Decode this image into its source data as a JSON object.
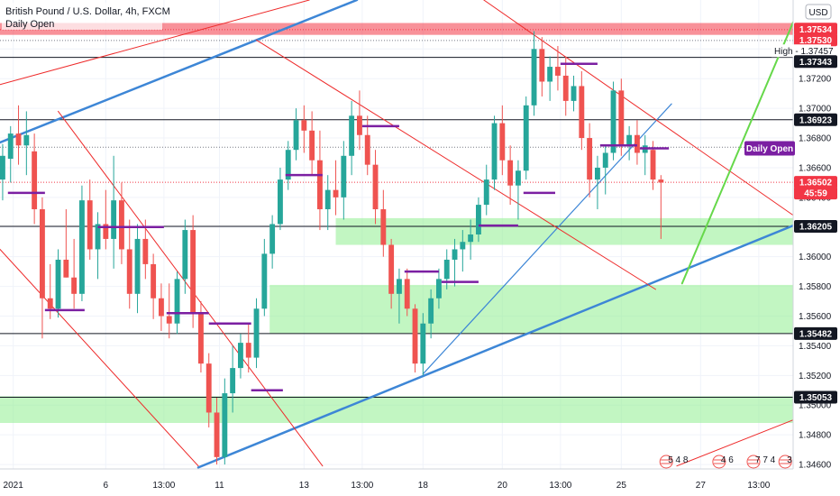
{
  "header": {
    "title": "British Pound / U.S. Dollar, 4h, FXCM",
    "indicator": "Daily Open",
    "currency_button": "USD"
  },
  "colors": {
    "up": "#26a69a",
    "down": "#ef5350",
    "grid": "#f0f3fa",
    "zone": "#90ee90",
    "channel_red": "#ee2a2a",
    "trend_blue": "#3d86d6",
    "arrow_green": "#66d84a",
    "daily_open": "#7b1fa2",
    "resistance_band": "#f23645"
  },
  "chart_data": {
    "type": "candlestick",
    "title": "British Pound / U.S. Dollar, 4h, FXCM",
    "ylim": [
      1.3457,
      1.3773
    ],
    "x_range": [
      0,
      300
    ],
    "y_ticks": [
      "1.34600",
      "1.34800",
      "1.35000",
      "1.35200",
      "1.35400",
      "1.35600",
      "1.35800",
      "1.36000",
      "1.36200",
      "1.36400",
      "1.36600",
      "1.36800",
      "1.37000",
      "1.37200",
      "1.37400"
    ],
    "x_ticks": [
      {
        "label": "2021",
        "x": 5
      },
      {
        "label": "6",
        "x": 40
      },
      {
        "label": "13:00",
        "x": 62
      },
      {
        "label": "11",
        "x": 83
      },
      {
        "label": "13",
        "x": 115
      },
      {
        "label": "13:00",
        "x": 137
      },
      {
        "label": "18",
        "x": 160
      },
      {
        "label": "20",
        "x": 190
      },
      {
        "label": "13:00",
        "x": 212
      },
      {
        "label": "25",
        "x": 235
      },
      {
        "label": "27",
        "x": 265
      },
      {
        "label": "13:00",
        "x": 287
      }
    ],
    "horizontal_lines": [
      {
        "price": 1.37343,
        "color": "#131722"
      },
      {
        "price": 1.36923,
        "color": "#131722"
      },
      {
        "price": 1.36205,
        "color": "#131722"
      },
      {
        "price": 1.35482,
        "color": "#131722"
      },
      {
        "price": 1.35053,
        "color": "#131722"
      }
    ],
    "dotted_lines": [
      {
        "price": 1.3753,
        "color": "#f23645"
      },
      {
        "price": 1.37457,
        "color": "#787b86"
      },
      {
        "price": 1.36738,
        "color": "#787b86"
      },
      {
        "price": 1.36502,
        "color": "#f23645"
      }
    ],
    "resistance_band": {
      "y0": 1.37495,
      "y1": 1.37575
    },
    "zones": [
      {
        "x0": 127,
        "x1": 300,
        "y0": 1.3608,
        "y1": 1.3626
      },
      {
        "x0": 102,
        "x1": 300,
        "y0": 1.35485,
        "y1": 1.3581
      },
      {
        "x0": 0,
        "x1": 300,
        "y0": 1.3488,
        "y1": 1.3506
      }
    ],
    "price_labels": [
      {
        "text": "1.37534",
        "price": 1.37534,
        "bg": "#f23645",
        "fg": "#ffffff"
      },
      {
        "text": "1.37530",
        "price": 1.3753,
        "bg": "#f23645",
        "fg": "#ffffff"
      },
      {
        "text": "High - 1.37457",
        "price": 1.37457,
        "bg": "#ffffff",
        "fg": "#131722"
      },
      {
        "text": "1.37343",
        "price": 1.37343,
        "bg": "#131722",
        "fg": "#ffffff"
      },
      {
        "text": "1.36923",
        "price": 1.36923,
        "bg": "#131722",
        "fg": "#ffffff"
      },
      {
        "text": "Daily Open",
        "price": 1.3673,
        "bg": "#7b1fa2",
        "fg": "#ffffff"
      },
      {
        "text": "1.36502",
        "price": 1.36502,
        "bg": "#f23645",
        "fg": "#ffffff"
      },
      {
        "text": "45:59",
        "price": 1.36435,
        "bg": "#f23645",
        "fg": "#ffffff"
      },
      {
        "text": "1.36205",
        "price": 1.36205,
        "bg": "#131722",
        "fg": "#ffffff"
      },
      {
        "text": "1.35482",
        "price": 1.35482,
        "bg": "#131722",
        "fg": "#ffffff"
      },
      {
        "text": "1.35053",
        "price": 1.35053,
        "bg": "#131722",
        "fg": "#ffffff"
      }
    ],
    "trend_lines": [
      {
        "x1": 0,
        "y1": 1.3677,
        "x2": 135,
        "y2": 1.3773,
        "color": "#3d86d6",
        "width": 2.5
      },
      {
        "x1": 75,
        "y1": 1.3458,
        "x2": 300,
        "y2": 1.3621,
        "color": "#3d86d6",
        "width": 2.5
      },
      {
        "x1": 160,
        "y1": 1.3521,
        "x2": 254,
        "y2": 1.3703,
        "color": "#3d86d6",
        "width": 1.2
      },
      {
        "x1": 0,
        "y1": 1.3716,
        "x2": 117,
        "y2": 1.3773,
        "color": "#ee2a2a",
        "width": 1
      },
      {
        "x1": 0,
        "y1": 1.3605,
        "x2": 75,
        "y2": 1.3459,
        "color": "#ee2a2a",
        "width": 1
      },
      {
        "x1": 22,
        "y1": 1.3698,
        "x2": 122,
        "y2": 1.3459,
        "color": "#ee2a2a",
        "width": 1
      },
      {
        "x1": 97,
        "y1": 1.3746,
        "x2": 248,
        "y2": 1.3578,
        "color": "#ee2a2a",
        "width": 1
      },
      {
        "x1": 183,
        "y1": 1.3773,
        "x2": 300,
        "y2": 1.3628,
        "color": "#ee2a2a",
        "width": 1
      },
      {
        "x1": 256,
        "y1": 1.3459,
        "x2": 300,
        "y2": 1.349,
        "color": "#ee2a2a",
        "width": 1
      },
      {
        "x1": 258,
        "y1": 1.3582,
        "x2": 300,
        "y2": 1.3758,
        "color": "#66d84a",
        "width": 2
      }
    ],
    "candles": [
      {
        "x": 1,
        "o": 1.3652,
        "h": 1.3676,
        "l": 1.3638,
        "c": 1.3668
      },
      {
        "x": 4,
        "o": 1.3666,
        "h": 1.3688,
        "l": 1.365,
        "c": 1.3683
      },
      {
        "x": 7,
        "o": 1.3683,
        "h": 1.3702,
        "l": 1.3662,
        "c": 1.3675
      },
      {
        "x": 10,
        "o": 1.3675,
        "h": 1.3698,
        "l": 1.3655,
        "c": 1.3682
      },
      {
        "x": 13,
        "o": 1.3671,
        "h": 1.3683,
        "l": 1.3622,
        "c": 1.3632
      },
      {
        "x": 16,
        "o": 1.3632,
        "h": 1.364,
        "l": 1.3545,
        "c": 1.3572
      },
      {
        "x": 19,
        "o": 1.3572,
        "h": 1.3595,
        "l": 1.3558,
        "c": 1.3565
      },
      {
        "x": 22,
        "o": 1.3565,
        "h": 1.3605,
        "l": 1.3559,
        "c": 1.3598
      },
      {
        "x": 25,
        "o": 1.3598,
        "h": 1.3632,
        "l": 1.3586,
        "c": 1.3586
      },
      {
        "x": 28,
        "o": 1.3586,
        "h": 1.3612,
        "l": 1.3565,
        "c": 1.3575
      },
      {
        "x": 31,
        "o": 1.3575,
        "h": 1.3648,
        "l": 1.357,
        "c": 1.3638
      },
      {
        "x": 34,
        "o": 1.3638,
        "h": 1.3652,
        "l": 1.3598,
        "c": 1.3605
      },
      {
        "x": 37,
        "o": 1.3605,
        "h": 1.363,
        "l": 1.3585,
        "c": 1.3622
      },
      {
        "x": 40,
        "o": 1.3622,
        "h": 1.3645,
        "l": 1.3605,
        "c": 1.3612
      },
      {
        "x": 43,
        "o": 1.3612,
        "h": 1.3668,
        "l": 1.3592,
        "c": 1.3638
      },
      {
        "x": 46,
        "o": 1.3638,
        "h": 1.365,
        "l": 1.3595,
        "c": 1.3605
      },
      {
        "x": 49,
        "o": 1.3605,
        "h": 1.3625,
        "l": 1.3565,
        "c": 1.3575
      },
      {
        "x": 52,
        "o": 1.3575,
        "h": 1.3622,
        "l": 1.3562,
        "c": 1.3612
      },
      {
        "x": 55,
        "o": 1.3612,
        "h": 1.3625,
        "l": 1.3585,
        "c": 1.3595
      },
      {
        "x": 58,
        "o": 1.3595,
        "h": 1.3602,
        "l": 1.3558,
        "c": 1.3572
      },
      {
        "x": 61,
        "o": 1.3572,
        "h": 1.3582,
        "l": 1.355,
        "c": 1.356
      },
      {
        "x": 64,
        "o": 1.356,
        "h": 1.3582,
        "l": 1.3545,
        "c": 1.3555
      },
      {
        "x": 67,
        "o": 1.3555,
        "h": 1.359,
        "l": 1.3548,
        "c": 1.3585
      },
      {
        "x": 70,
        "o": 1.3585,
        "h": 1.3625,
        "l": 1.3575,
        "c": 1.3618
      },
      {
        "x": 73,
        "o": 1.3618,
        "h": 1.3628,
        "l": 1.3552,
        "c": 1.3562
      },
      {
        "x": 76,
        "o": 1.3562,
        "h": 1.357,
        "l": 1.3522,
        "c": 1.3528
      },
      {
        "x": 79,
        "o": 1.3528,
        "h": 1.3535,
        "l": 1.3485,
        "c": 1.3495
      },
      {
        "x": 82,
        "o": 1.3495,
        "h": 1.3505,
        "l": 1.346,
        "c": 1.3465
      },
      {
        "x": 85,
        "o": 1.3465,
        "h": 1.3518,
        "l": 1.346,
        "c": 1.3508
      },
      {
        "x": 88,
        "o": 1.3508,
        "h": 1.354,
        "l": 1.3495,
        "c": 1.3525
      },
      {
        "x": 91,
        "o": 1.3525,
        "h": 1.3548,
        "l": 1.3518,
        "c": 1.3542
      },
      {
        "x": 94,
        "o": 1.3542,
        "h": 1.3555,
        "l": 1.3522,
        "c": 1.3532
      },
      {
        "x": 97,
        "o": 1.3532,
        "h": 1.3572,
        "l": 1.3525,
        "c": 1.3565
      },
      {
        "x": 100,
        "o": 1.3565,
        "h": 1.3612,
        "l": 1.356,
        "c": 1.3602
      },
      {
        "x": 103,
        "o": 1.3602,
        "h": 1.3628,
        "l": 1.3592,
        "c": 1.3622
      },
      {
        "x": 106,
        "o": 1.3622,
        "h": 1.366,
        "l": 1.3618,
        "c": 1.3652
      },
      {
        "x": 109,
        "o": 1.3652,
        "h": 1.3678,
        "l": 1.3645,
        "c": 1.3672
      },
      {
        "x": 112,
        "o": 1.3672,
        "h": 1.37,
        "l": 1.3665,
        "c": 1.3692
      },
      {
        "x": 115,
        "o": 1.3692,
        "h": 1.3702,
        "l": 1.367,
        "c": 1.3685
      },
      {
        "x": 118,
        "o": 1.3685,
        "h": 1.3698,
        "l": 1.3655,
        "c": 1.3665
      },
      {
        "x": 121,
        "o": 1.3665,
        "h": 1.3685,
        "l": 1.3618,
        "c": 1.3632
      },
      {
        "x": 124,
        "o": 1.3632,
        "h": 1.3655,
        "l": 1.3618,
        "c": 1.3645
      },
      {
        "x": 127,
        "o": 1.3645,
        "h": 1.3665,
        "l": 1.3628,
        "c": 1.364
      },
      {
        "x": 130,
        "o": 1.364,
        "h": 1.3678,
        "l": 1.3625,
        "c": 1.3668
      },
      {
        "x": 133,
        "o": 1.3668,
        "h": 1.3705,
        "l": 1.3655,
        "c": 1.3695
      },
      {
        "x": 136,
        "o": 1.3695,
        "h": 1.3712,
        "l": 1.3672,
        "c": 1.3682
      },
      {
        "x": 139,
        "o": 1.3682,
        "h": 1.3695,
        "l": 1.3655,
        "c": 1.3662
      },
      {
        "x": 142,
        "o": 1.3662,
        "h": 1.3672,
        "l": 1.3622,
        "c": 1.3632
      },
      {
        "x": 145,
        "o": 1.3632,
        "h": 1.3645,
        "l": 1.36,
        "c": 1.3608
      },
      {
        "x": 148,
        "o": 1.3608,
        "h": 1.3612,
        "l": 1.3565,
        "c": 1.3575
      },
      {
        "x": 151,
        "o": 1.3575,
        "h": 1.3592,
        "l": 1.3555,
        "c": 1.3585
      },
      {
        "x": 154,
        "o": 1.3585,
        "h": 1.3592,
        "l": 1.356,
        "c": 1.3565
      },
      {
        "x": 157,
        "o": 1.3565,
        "h": 1.3568,
        "l": 1.3522,
        "c": 1.3528
      },
      {
        "x": 160,
        "o": 1.3528,
        "h": 1.3562,
        "l": 1.352,
        "c": 1.3555
      },
      {
        "x": 163,
        "o": 1.3555,
        "h": 1.3578,
        "l": 1.3545,
        "c": 1.3572
      },
      {
        "x": 166,
        "o": 1.3572,
        "h": 1.3592,
        "l": 1.3565,
        "c": 1.3585
      },
      {
        "x": 169,
        "o": 1.3585,
        "h": 1.3605,
        "l": 1.3578,
        "c": 1.3598
      },
      {
        "x": 172,
        "o": 1.3598,
        "h": 1.3612,
        "l": 1.358,
        "c": 1.3605
      },
      {
        "x": 175,
        "o": 1.3605,
        "h": 1.3618,
        "l": 1.359,
        "c": 1.361
      },
      {
        "x": 178,
        "o": 1.361,
        "h": 1.3625,
        "l": 1.3598,
        "c": 1.3615
      },
      {
        "x": 181,
        "o": 1.3615,
        "h": 1.364,
        "l": 1.361,
        "c": 1.3635
      },
      {
        "x": 184,
        "o": 1.3635,
        "h": 1.3662,
        "l": 1.3628,
        "c": 1.3652
      },
      {
        "x": 187,
        "o": 1.3652,
        "h": 1.3695,
        "l": 1.3645,
        "c": 1.369
      },
      {
        "x": 190,
        "o": 1.369,
        "h": 1.3702,
        "l": 1.3655,
        "c": 1.3665
      },
      {
        "x": 193,
        "o": 1.3665,
        "h": 1.3675,
        "l": 1.3635,
        "c": 1.3648
      },
      {
        "x": 196,
        "o": 1.3648,
        "h": 1.3665,
        "l": 1.3625,
        "c": 1.3658
      },
      {
        "x": 199,
        "o": 1.3658,
        "h": 1.3708,
        "l": 1.3652,
        "c": 1.3702
      },
      {
        "x": 202,
        "o": 1.3702,
        "h": 1.3752,
        "l": 1.3695,
        "c": 1.374
      },
      {
        "x": 205,
        "o": 1.374,
        "h": 1.3748,
        "l": 1.3708,
        "c": 1.3718
      },
      {
        "x": 208,
        "o": 1.3718,
        "h": 1.3735,
        "l": 1.3705,
        "c": 1.3728
      },
      {
        "x": 211,
        "o": 1.3728,
        "h": 1.3742,
        "l": 1.3712,
        "c": 1.3722
      },
      {
        "x": 214,
        "o": 1.3722,
        "h": 1.3735,
        "l": 1.3695,
        "c": 1.3705
      },
      {
        "x": 217,
        "o": 1.3705,
        "h": 1.3722,
        "l": 1.3698,
        "c": 1.3715
      },
      {
        "x": 220,
        "o": 1.3715,
        "h": 1.3725,
        "l": 1.3672,
        "c": 1.368
      },
      {
        "x": 223,
        "o": 1.368,
        "h": 1.369,
        "l": 1.364,
        "c": 1.3652
      },
      {
        "x": 226,
        "o": 1.3652,
        "h": 1.3668,
        "l": 1.3632,
        "c": 1.366
      },
      {
        "x": 229,
        "o": 1.366,
        "h": 1.3675,
        "l": 1.3642,
        "c": 1.367
      },
      {
        "x": 232,
        "o": 1.367,
        "h": 1.3718,
        "l": 1.3665,
        "c": 1.3712
      },
      {
        "x": 235,
        "o": 1.3712,
        "h": 1.372,
        "l": 1.3668,
        "c": 1.3675
      },
      {
        "x": 238,
        "o": 1.3675,
        "h": 1.3688,
        "l": 1.3665,
        "c": 1.3682
      },
      {
        "x": 241,
        "o": 1.3682,
        "h": 1.3692,
        "l": 1.3662,
        "c": 1.367
      },
      {
        "x": 244,
        "o": 1.367,
        "h": 1.3682,
        "l": 1.3655,
        "c": 1.3675
      },
      {
        "x": 247,
        "o": 1.3672,
        "h": 1.3678,
        "l": 1.3645,
        "c": 1.3652
      },
      {
        "x": 250,
        "o": 1.3652,
        "h": 1.3655,
        "l": 1.3612,
        "c": 1.365
      }
    ],
    "daily_open_segments": [
      {
        "x0": 3,
        "x1": 17,
        "price": 1.3643
      },
      {
        "x0": 17,
        "x1": 32,
        "price": 1.3564
      },
      {
        "x0": 37,
        "x1": 62,
        "price": 1.362
      },
      {
        "x0": 63,
        "x1": 79,
        "price": 1.3562
      },
      {
        "x0": 79,
        "x1": 95,
        "price": 1.3555
      },
      {
        "x0": 95,
        "x1": 107,
        "price": 1.351
      },
      {
        "x0": 108,
        "x1": 122,
        "price": 1.3655
      },
      {
        "x0": 137,
        "x1": 151,
        "price": 1.3688
      },
      {
        "x0": 153,
        "x1": 166,
        "price": 1.359
      },
      {
        "x0": 167,
        "x1": 181,
        "price": 1.3583
      },
      {
        "x0": 181,
        "x1": 196,
        "price": 1.3621
      },
      {
        "x0": 198,
        "x1": 210,
        "price": 1.3643
      },
      {
        "x0": 212,
        "x1": 226,
        "price": 1.373
      },
      {
        "x0": 227,
        "x1": 241,
        "price": 1.3675
      },
      {
        "x0": 242,
        "x1": 253,
        "price": 1.3673
      }
    ],
    "event_markers": [
      {
        "x": 252,
        "text": "5 4 8"
      },
      {
        "x": 272,
        "text": "4 6"
      },
      {
        "x": 285,
        "text": "7 7 4"
      },
      {
        "x": 297,
        "text": "3"
      }
    ]
  }
}
